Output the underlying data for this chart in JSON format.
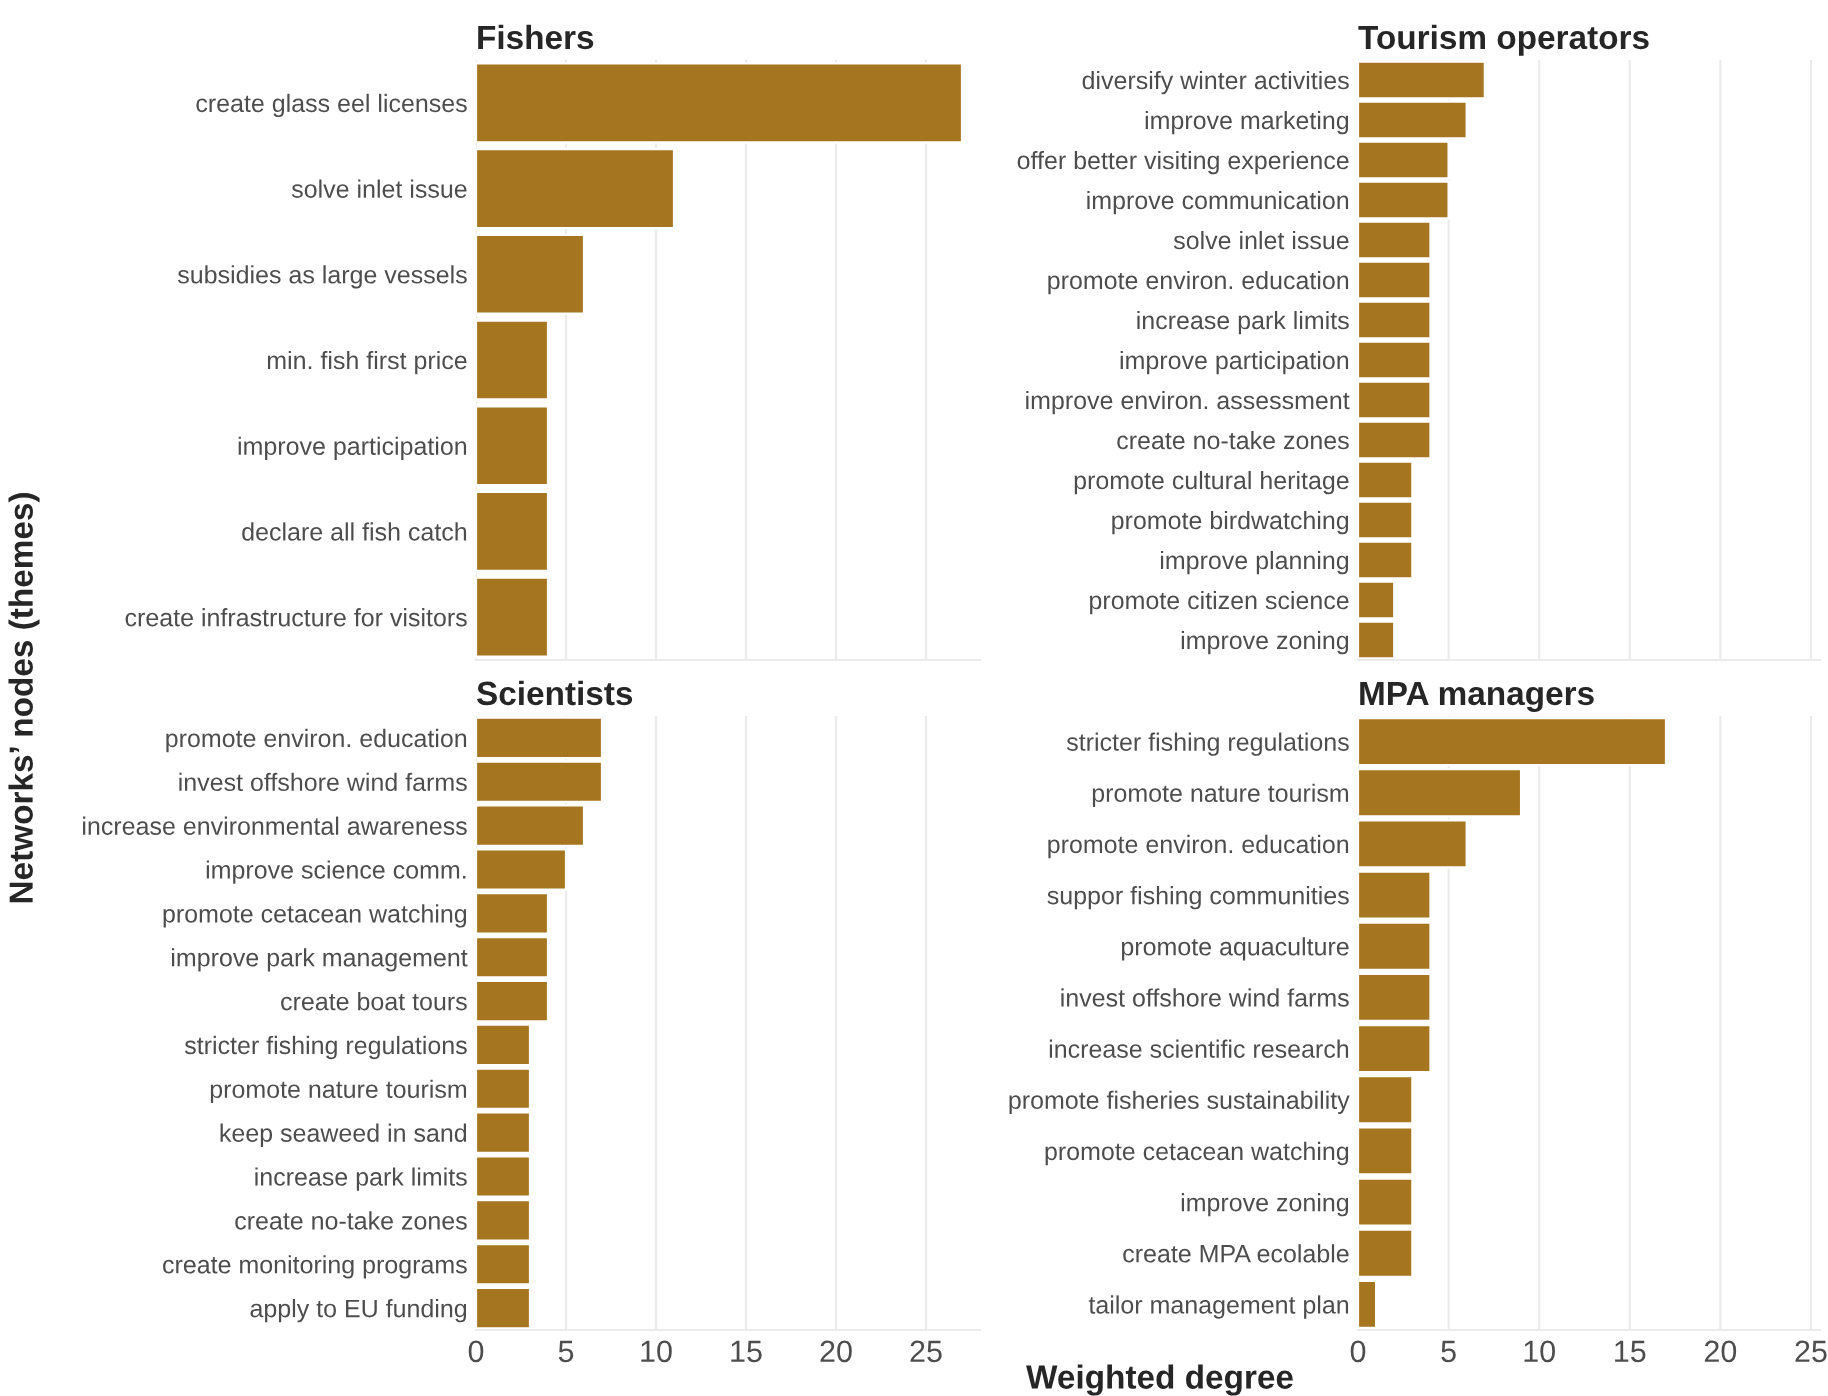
{
  "chart_data": [
    {
      "type": "bar",
      "orientation": "horizontal",
      "title": "Fishers",
      "ylabel": "Networks’ nodes (themes)",
      "categories": [
        "create glass eel licenses",
        "solve inlet issue",
        "subsidies as large vessels",
        "min. fish first price",
        "improve participation",
        "declare all fish catch",
        "create infrastructure for visitors"
      ],
      "values": [
        27,
        11,
        6,
        4,
        4,
        4,
        4
      ],
      "color": "#a5751f",
      "xlim": [
        0,
        28
      ],
      "xticks": [
        0,
        5,
        10,
        15,
        20,
        25
      ],
      "grid": "x",
      "tick_labels": "y"
    },
    {
      "type": "bar",
      "orientation": "horizontal",
      "title": "Tourism operators",
      "categories": [
        "diversify winter activities",
        "improve marketing",
        "offer better visiting experience",
        "improve communication",
        "solve inlet issue",
        "promote environ. education",
        "increase park limits",
        "improve participation",
        "improve environ. assessment",
        "create no-take zones",
        "promote cultural heritage",
        "promote birdwatching",
        "improve planning",
        "promote citizen science",
        "improve zoning"
      ],
      "values": [
        7,
        6,
        5,
        5,
        4,
        4,
        4,
        4,
        4,
        4,
        3,
        3,
        3,
        2,
        2
      ],
      "color": "#a5751f",
      "xlim": [
        0,
        25.5
      ],
      "xticks": [
        0,
        5,
        10,
        15,
        20,
        25
      ],
      "grid": "x",
      "tick_labels": "y"
    },
    {
      "type": "bar",
      "orientation": "horizontal",
      "title": "Scientists",
      "xlabel": "Weighted degree",
      "categories": [
        "promote environ. education",
        "invest offshore wind farms",
        "increase environmental awareness",
        "improve science comm.",
        "promote cetacean watching",
        "improve park management",
        "create boat tours",
        "stricter fishing regulations",
        "promote nature tourism",
        "keep seaweed in sand",
        "increase park limits",
        "create no-take zones",
        "create monitoring programs",
        "apply to EU funding"
      ],
      "values": [
        7,
        7,
        6,
        5,
        4,
        4,
        4,
        3,
        3,
        3,
        3,
        3,
        3,
        3
      ],
      "color": "#a5751f",
      "xlim": [
        0,
        28
      ],
      "xticks": [
        0,
        5,
        10,
        15,
        20,
        25
      ],
      "grid": "x"
    },
    {
      "type": "bar",
      "orientation": "horizontal",
      "title": "MPA managers",
      "categories": [
        "stricter fishing regulations",
        "promote nature tourism",
        "promote environ. education",
        "suppor fishing communities",
        "promote aquaculture",
        "invest offshore wind farms",
        "increase scientific research",
        "promote fisheries sustainability",
        "promote cetacean watching",
        "improve zoning",
        "create MPA ecolable",
        "tailor management plan"
      ],
      "values": [
        17,
        9,
        6,
        4,
        4,
        4,
        4,
        3,
        3,
        3,
        3,
        1
      ],
      "color": "#a5751f",
      "xlim": [
        0,
        25.5
      ],
      "xticks": [
        0,
        5,
        10,
        15,
        20,
        25
      ],
      "grid": "x"
    }
  ]
}
